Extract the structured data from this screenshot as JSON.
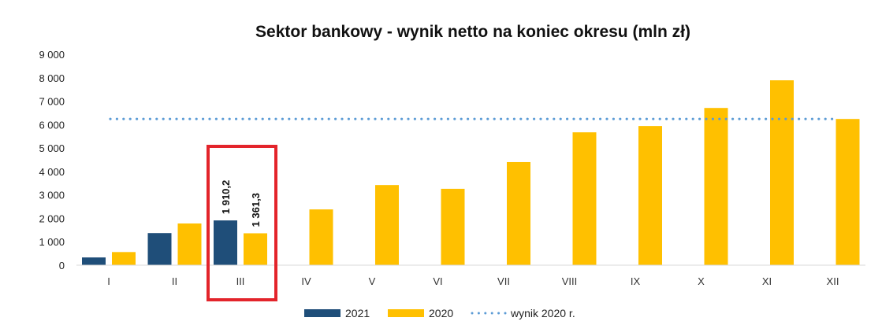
{
  "chart_data": {
    "type": "bar",
    "title": "Sektor bankowy - wynik netto na koniec okresu (mln zł)",
    "xlabel": "",
    "ylabel": "",
    "ylim": [
      0,
      9000
    ],
    "yticks": [
      0,
      1000,
      2000,
      3000,
      4000,
      5000,
      6000,
      7000,
      8000,
      9000
    ],
    "ytick_labels": [
      "0",
      "1 000",
      "2 000",
      "3 000",
      "4 000",
      "5 000",
      "6 000",
      "7 000",
      "8 000",
      "9 000"
    ],
    "categories": [
      "I",
      "II",
      "III",
      "IV",
      "V",
      "VI",
      "VII",
      "VIII",
      "IX",
      "X",
      "XI",
      "XII"
    ],
    "series": [
      {
        "name": "2021",
        "color": "#1f4e79",
        "values": [
          330,
          1370,
          1910.2,
          null,
          null,
          null,
          null,
          null,
          null,
          null,
          null,
          null
        ]
      },
      {
        "name": "2020",
        "color": "#ffc000",
        "values": [
          560,
          1780,
          1361.3,
          2380,
          3420,
          3260,
          4400,
          5670,
          5940,
          6710,
          7890,
          6240
        ]
      }
    ],
    "reference_line": {
      "name": "wynik 2020 r.",
      "value": 6240,
      "color": "#5b9bd5",
      "style": "dotted"
    },
    "data_labels": [
      {
        "series": "2021",
        "category": "III",
        "text": "1 910,2"
      },
      {
        "series": "2020",
        "category": "III",
        "text": "1 361,3"
      }
    ],
    "highlight": {
      "category": "III",
      "color": "#e3242b"
    },
    "legend": {
      "placement": "bottom",
      "items": [
        "2021",
        "2020",
        "wynik 2020 r."
      ]
    },
    "grid": false
  }
}
